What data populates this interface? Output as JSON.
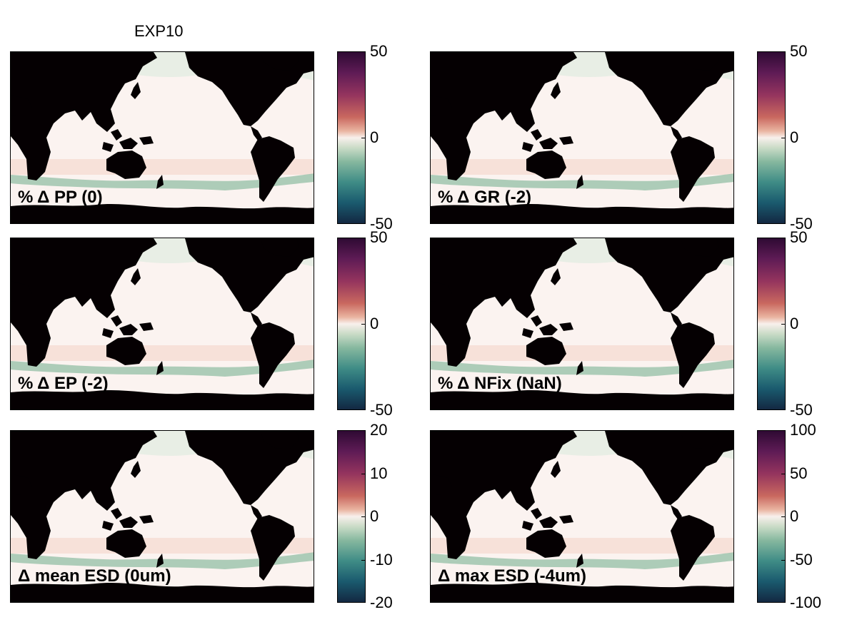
{
  "figure": {
    "title": "EXP10"
  },
  "colors": {
    "land": "#050002",
    "ocean_neutral": "#fbf3f0",
    "colormap_high": "#2e0a33",
    "colormap_low": "#132842"
  },
  "panels": [
    {
      "label": "% Δ PP (0)",
      "colorbar_ticks": [
        "50",
        "0",
        "-50"
      ]
    },
    {
      "label": "% Δ GR (-2)",
      "colorbar_ticks": [
        "50",
        "0",
        "-50"
      ]
    },
    {
      "label": "% Δ EP (-2)",
      "colorbar_ticks": [
        "50",
        "0",
        "-50"
      ]
    },
    {
      "label": "% Δ NFix (NaN)",
      "colorbar_ticks": [
        "50",
        "0",
        "-50"
      ]
    },
    {
      "label": "Δ mean ESD (0um)",
      "colorbar_ticks": [
        "20",
        "10",
        "0",
        "-10",
        "-20"
      ]
    },
    {
      "label": "Δ max ESD (-4um)",
      "colorbar_ticks": [
        "100",
        "50",
        "0",
        "-50",
        "-100"
      ]
    }
  ]
}
